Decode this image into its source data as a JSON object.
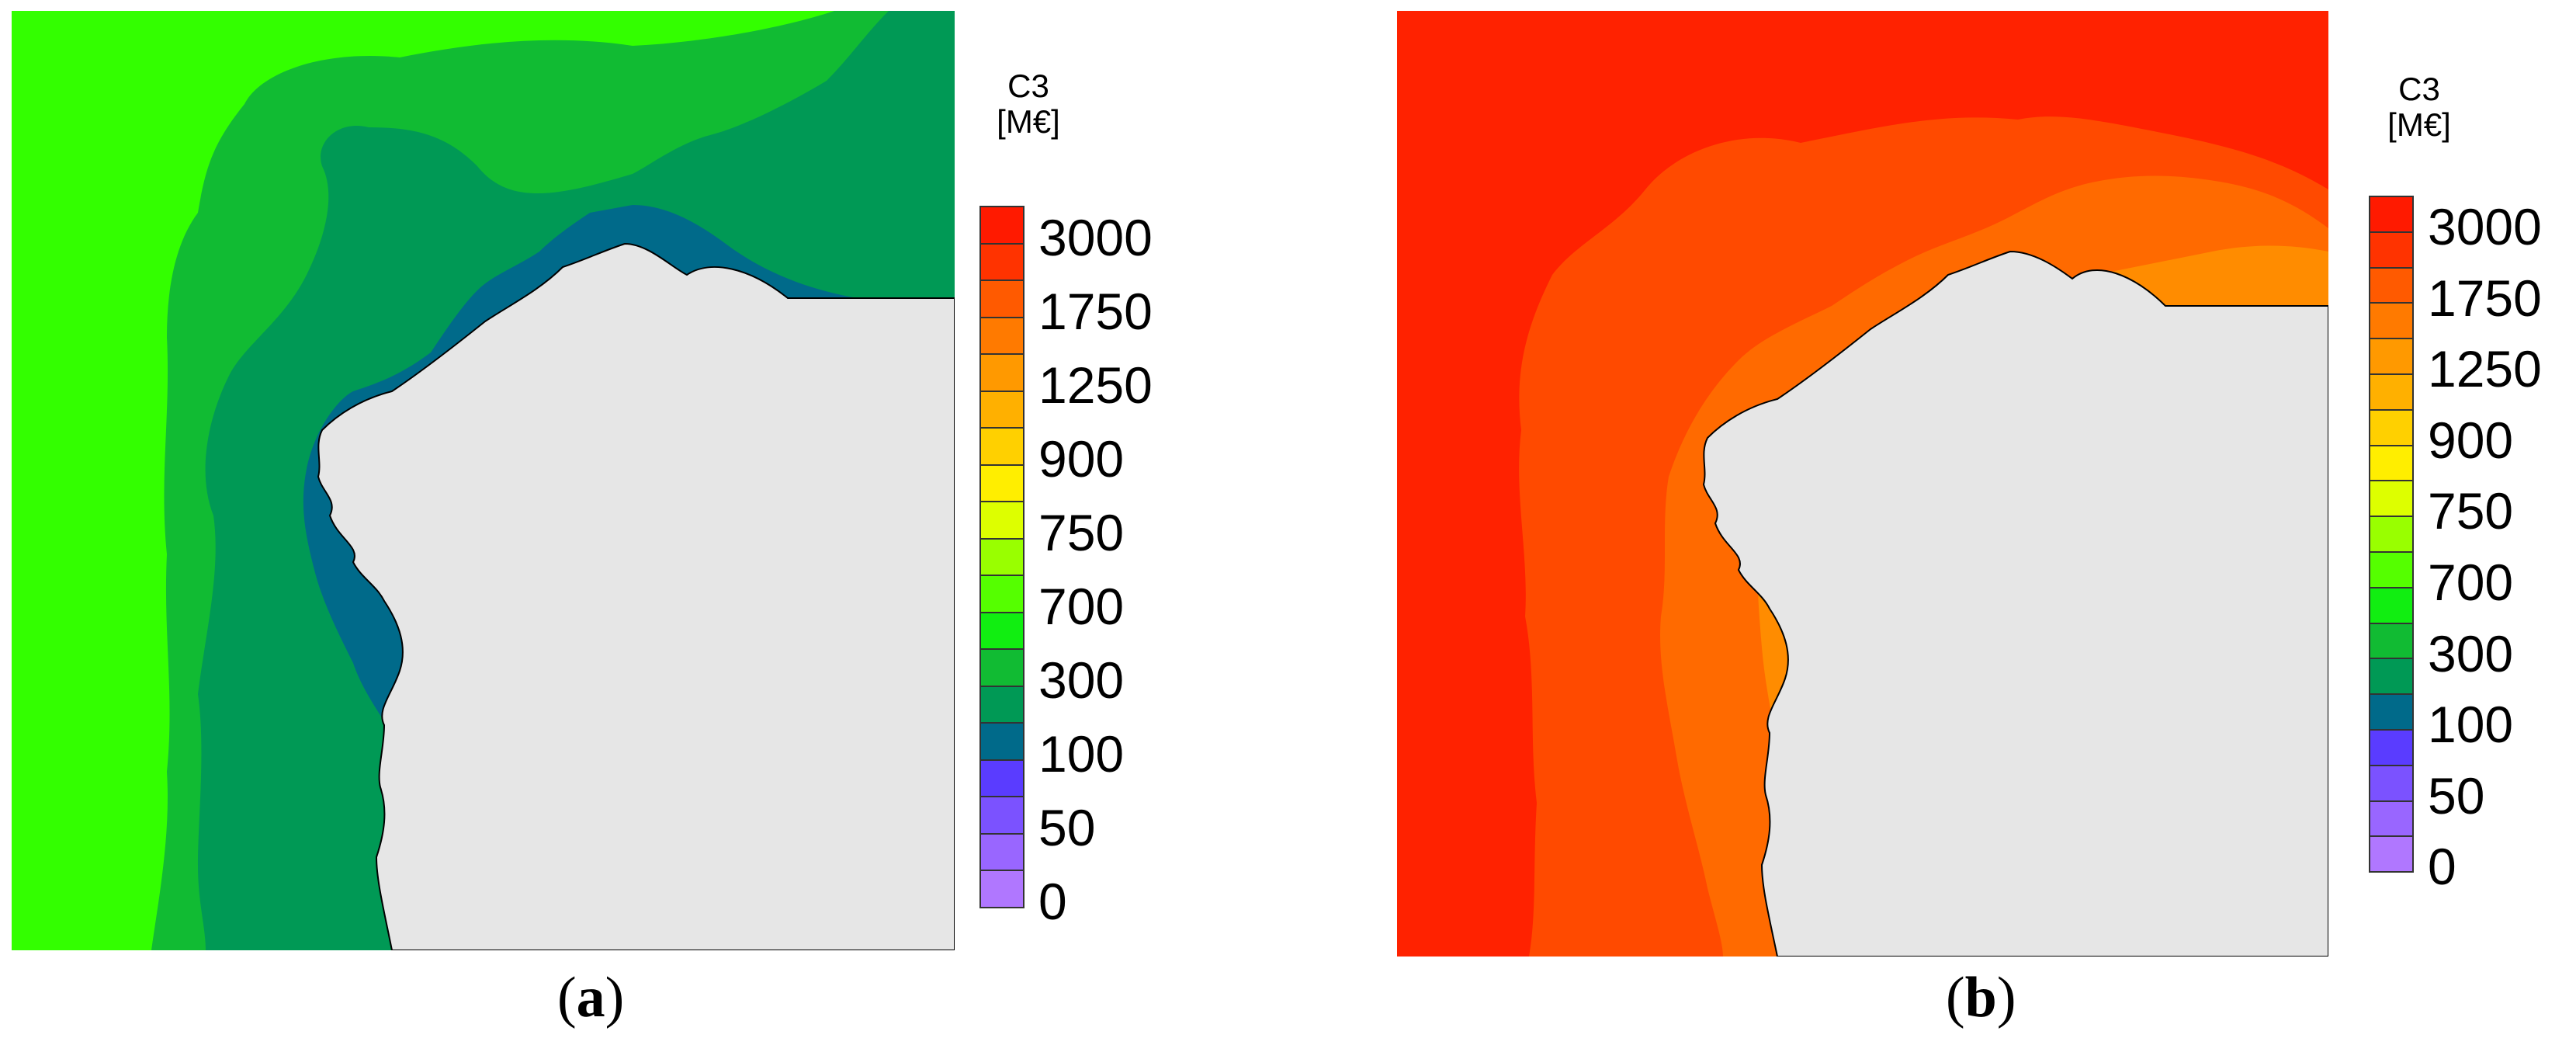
{
  "panels": [
    {
      "id": "a",
      "caption_open": "(",
      "caption_letter": "a",
      "caption_close": ")",
      "legend_title_line1": "C3",
      "legend_title_line2": "[M€]",
      "sea_zone_colors": [
        "#33ff00",
        "#11bb33",
        "#009955",
        "#006a8a"
      ],
      "land_color": "#e6e6e6"
    },
    {
      "id": "b",
      "caption_open": "(",
      "caption_letter": "b",
      "caption_close": ")",
      "legend_title_line1": "C3",
      "legend_title_line2": "[M€]",
      "sea_zone_colors": [
        "#ff2200",
        "#ff4a00",
        "#ff6a00",
        "#ff8c00"
      ],
      "land_color": "#e6e6e6"
    }
  ],
  "legend": {
    "tick_labels": [
      "3000",
      "1750",
      "1250",
      "900",
      "750",
      "700",
      "300",
      "100",
      "50",
      "0"
    ],
    "colors": [
      "#ff1a00",
      "#ff3300",
      "#ff5a00",
      "#ff7a00",
      "#ff9900",
      "#ffb000",
      "#ffd000",
      "#ffee00",
      "#ddff00",
      "#99ff00",
      "#55ff00",
      "#11ee11",
      "#11bb33",
      "#009955",
      "#006a8a",
      "#5a3cff",
      "#7b52ff",
      "#9966ff",
      "#b077ff"
    ]
  }
}
